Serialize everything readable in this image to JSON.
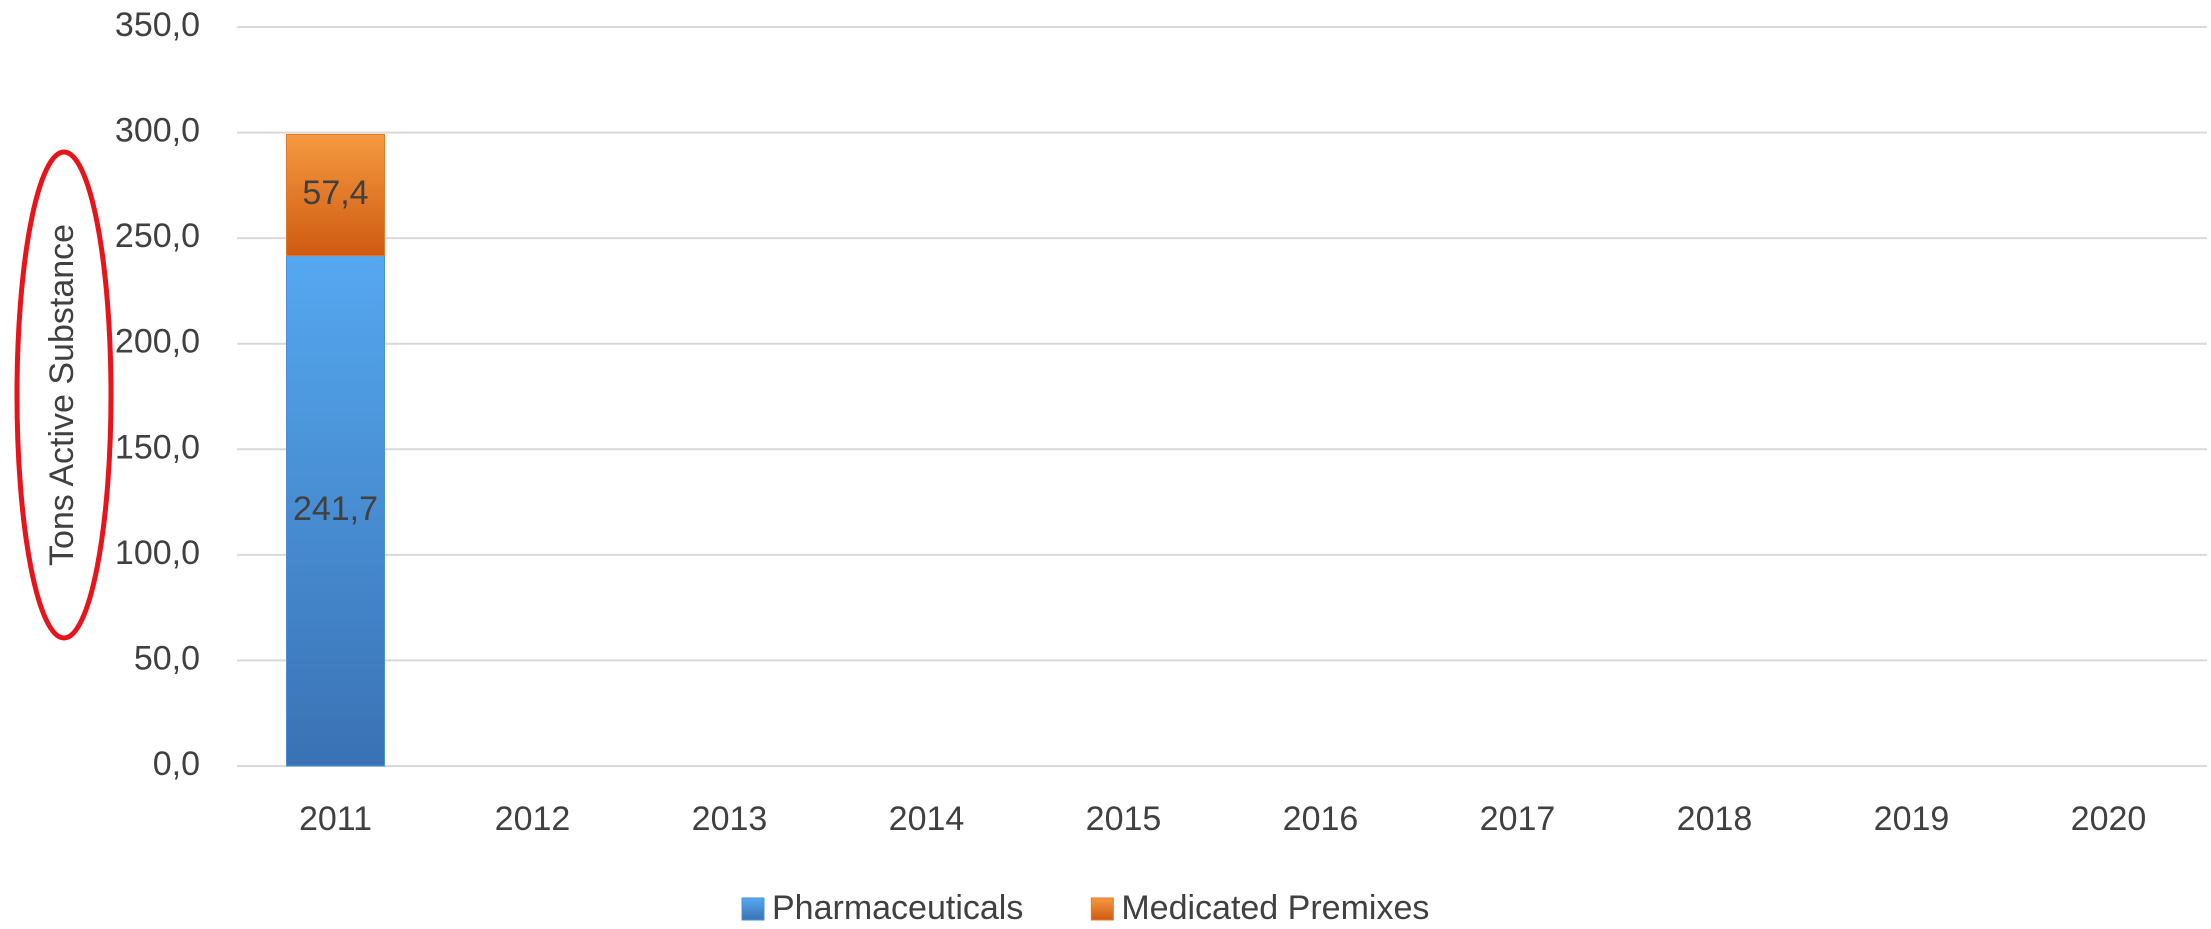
{
  "chart_data": {
    "type": "stacked_bar",
    "y_axis_label": "Tons Active Substance",
    "categories": [
      "2011",
      "2012",
      "2013",
      "2014",
      "2015",
      "2016",
      "2017",
      "2018",
      "2019",
      "2020"
    ],
    "series": [
      {
        "name": "Pharmaceuticals",
        "color": "#4a90d9",
        "values": [
          241.7,
          null,
          null,
          null,
          null,
          null,
          null,
          null,
          null,
          null
        ],
        "value_labels": [
          "241,7",
          null,
          null,
          null,
          null,
          null,
          null,
          null,
          null,
          null
        ]
      },
      {
        "name": "Medicated Premixes",
        "color": "#e8782a",
        "values": [
          57.4,
          null,
          null,
          null,
          null,
          null,
          null,
          null,
          null,
          null
        ],
        "value_labels": [
          "57,4",
          null,
          null,
          null,
          null,
          null,
          null,
          null,
          null,
          null
        ]
      }
    ],
    "ylim": [
      0,
      350
    ],
    "yticks": [
      {
        "value": 0,
        "label": "0,0"
      },
      {
        "value": 50,
        "label": "50,0"
      },
      {
        "value": 100,
        "label": "100,0"
      },
      {
        "value": 150,
        "label": "150,0"
      },
      {
        "value": 200,
        "label": "200,0"
      },
      {
        "value": 250,
        "label": "250,0"
      },
      {
        "value": 300,
        "label": "300,0"
      },
      {
        "value": 350,
        "label": "350,0"
      }
    ],
    "grid": true,
    "legend": "bottom"
  }
}
